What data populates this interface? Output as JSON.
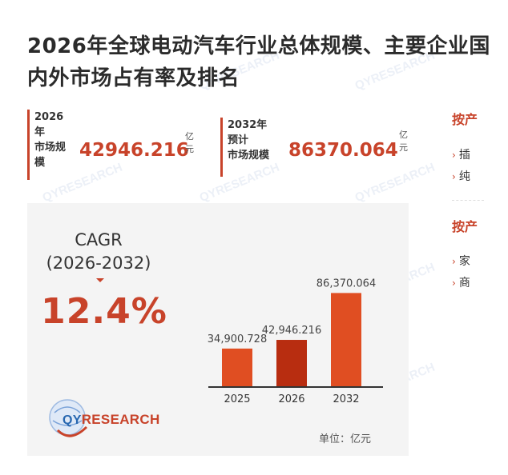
{
  "title": "2026年全球电动汽车行业总体规模、主要企业国内外市场占有率及排名",
  "stats": [
    {
      "label": "2026\n年\n市场规\n模",
      "value": "42946.216",
      "unit": "亿\n元"
    },
    {
      "label": "2032年\n预计\n市场规模",
      "value": "86370.064",
      "unit": "亿\n元"
    }
  ],
  "right_col": {
    "heading1": "按产",
    "items1": [
      "插",
      "纯"
    ],
    "heading2": "按产",
    "items2": [
      "家",
      "商"
    ]
  },
  "cagr": {
    "label": "CAGR\n(2026-2032)",
    "value": "12.4%"
  },
  "brand": {
    "prefix": "QY",
    "suffix": "RESEARCH",
    "watermark": "QYRESEARCH"
  },
  "unit_label": "单位：亿元",
  "chart_data": {
    "type": "bar",
    "categories": [
      "2025",
      "2026",
      "2032"
    ],
    "values": [
      34900.728,
      42946.216,
      86370.064
    ],
    "value_labels": [
      "34,900.728",
      "42,946.216",
      "86,370.064"
    ],
    "colors": [
      "#e04e22",
      "#b82d10",
      "#e04e22"
    ],
    "ylim": [
      0,
      100000
    ],
    "title": "",
    "xlabel": "",
    "ylabel": ""
  }
}
